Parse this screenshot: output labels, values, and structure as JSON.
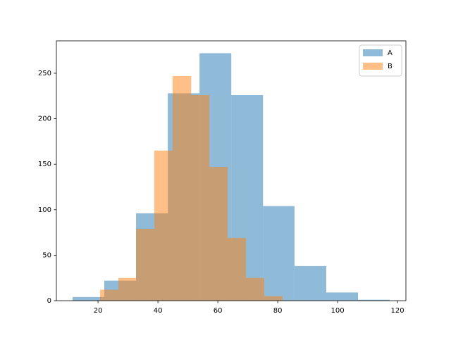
{
  "chart_data": {
    "type": "histogram",
    "series": [
      {
        "name": "A",
        "color": "#1f77b4",
        "bins": [
          11.5,
          22.1,
          32.7,
          43.3,
          53.9,
          64.5,
          75.1,
          85.6,
          96.2,
          106.8,
          117.4
        ],
        "values": [
          4,
          22,
          96,
          228,
          272,
          226,
          104,
          38,
          9,
          1
        ]
      },
      {
        "name": "B",
        "color": "#ff7f0e",
        "bins": [
          20.7,
          26.8,
          32.7,
          38.8,
          44.9,
          51.1,
          57.2,
          63.3,
          69.4,
          75.5,
          81.6
        ],
        "values": [
          12,
          25,
          79,
          165,
          247,
          226,
          147,
          69,
          25,
          5
        ]
      }
    ],
    "alpha": 0.5,
    "xlim": [
      6.1,
      122.8
    ],
    "xticks": [
      20,
      40,
      60,
      80,
      100,
      120
    ],
    "ylim": [
      0,
      285.6
    ],
    "yticks": [
      0,
      50,
      100,
      150,
      200,
      250
    ],
    "legend": "upper right"
  }
}
